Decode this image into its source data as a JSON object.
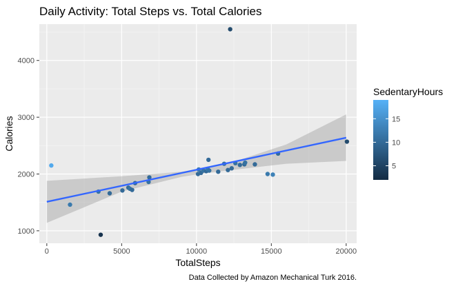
{
  "chart_data": {
    "type": "scatter",
    "title": "Daily Activity: Total Steps vs. Total Calories",
    "xlabel": "TotalSteps",
    "ylabel": "Calories",
    "caption": "Data Collected by Amazon Mechanical Turk 2016.",
    "xlim": [
      -500,
      20700
    ],
    "ylim": [
      780,
      4640
    ],
    "x_ticks": [
      0,
      5000,
      10000,
      15000,
      20000
    ],
    "x_tick_labels": [
      "0",
      "5000",
      "10000",
      "15000",
      "20000"
    ],
    "y_ticks": [
      1000,
      2000,
      3000,
      4000
    ],
    "y_tick_labels": [
      "1000",
      "2000",
      "3000",
      "4000"
    ],
    "grid": true,
    "legend": {
      "title": "SedentaryHours",
      "placement": "right",
      "range": [
        2,
        19
      ],
      "ticks": [
        5,
        10,
        15
      ],
      "tick_labels": [
        "5",
        "10",
        "15"
      ],
      "low_color": "#132B43",
      "high_color": "#56B1F7"
    },
    "smooth": {
      "method": "lm",
      "color": "#3366FF",
      "band_color": "#999999",
      "line": [
        [
          0,
          1510
        ],
        [
          20000,
          2640
        ]
      ],
      "band_upper": [
        [
          0,
          1880
        ],
        [
          5000,
          1960
        ],
        [
          9000,
          2040
        ],
        [
          10700,
          2110
        ],
        [
          13000,
          2260
        ],
        [
          16000,
          2520
        ],
        [
          20000,
          3050
        ]
      ],
      "band_lower": [
        [
          20000,
          2230
        ],
        [
          16000,
          2180
        ],
        [
          13000,
          2090
        ],
        [
          10700,
          2020
        ],
        [
          9000,
          1950
        ],
        [
          5000,
          1690
        ],
        [
          0,
          1140
        ]
      ]
    },
    "points": [
      {
        "x": 300,
        "y": 2150,
        "c": 18
      },
      {
        "x": 1550,
        "y": 1460,
        "c": 12
      },
      {
        "x": 3450,
        "y": 1690,
        "c": 11
      },
      {
        "x": 3600,
        "y": 930,
        "c": 3
      },
      {
        "x": 4200,
        "y": 1660,
        "c": 10
      },
      {
        "x": 5050,
        "y": 1710,
        "c": 10
      },
      {
        "x": 5450,
        "y": 1760,
        "c": 10
      },
      {
        "x": 5550,
        "y": 1740,
        "c": 11
      },
      {
        "x": 5700,
        "y": 1720,
        "c": 10
      },
      {
        "x": 5900,
        "y": 1840,
        "c": 10
      },
      {
        "x": 6800,
        "y": 1860,
        "c": 11
      },
      {
        "x": 6850,
        "y": 1940,
        "c": 10
      },
      {
        "x": 10100,
        "y": 2000,
        "c": 10
      },
      {
        "x": 10150,
        "y": 2080,
        "c": 12
      },
      {
        "x": 10300,
        "y": 2020,
        "c": 10
      },
      {
        "x": 10450,
        "y": 2060,
        "c": 11
      },
      {
        "x": 10650,
        "y": 2050,
        "c": 10
      },
      {
        "x": 10750,
        "y": 2090,
        "c": 12
      },
      {
        "x": 10800,
        "y": 2250,
        "c": 10
      },
      {
        "x": 10850,
        "y": 2060,
        "c": 11
      },
      {
        "x": 11450,
        "y": 2040,
        "c": 10
      },
      {
        "x": 11850,
        "y": 2180,
        "c": 11
      },
      {
        "x": 12100,
        "y": 2070,
        "c": 10
      },
      {
        "x": 12250,
        "y": 4550,
        "c": 6
      },
      {
        "x": 12350,
        "y": 2100,
        "c": 10
      },
      {
        "x": 12600,
        "y": 2190,
        "c": 11
      },
      {
        "x": 12900,
        "y": 2160,
        "c": 10
      },
      {
        "x": 13200,
        "y": 2170,
        "c": 10
      },
      {
        "x": 13250,
        "y": 2200,
        "c": 11
      },
      {
        "x": 13900,
        "y": 2170,
        "c": 10
      },
      {
        "x": 14750,
        "y": 2000,
        "c": 12
      },
      {
        "x": 15100,
        "y": 1990,
        "c": 13
      },
      {
        "x": 15450,
        "y": 2360,
        "c": 10
      },
      {
        "x": 20050,
        "y": 2570,
        "c": 6
      }
    ]
  }
}
